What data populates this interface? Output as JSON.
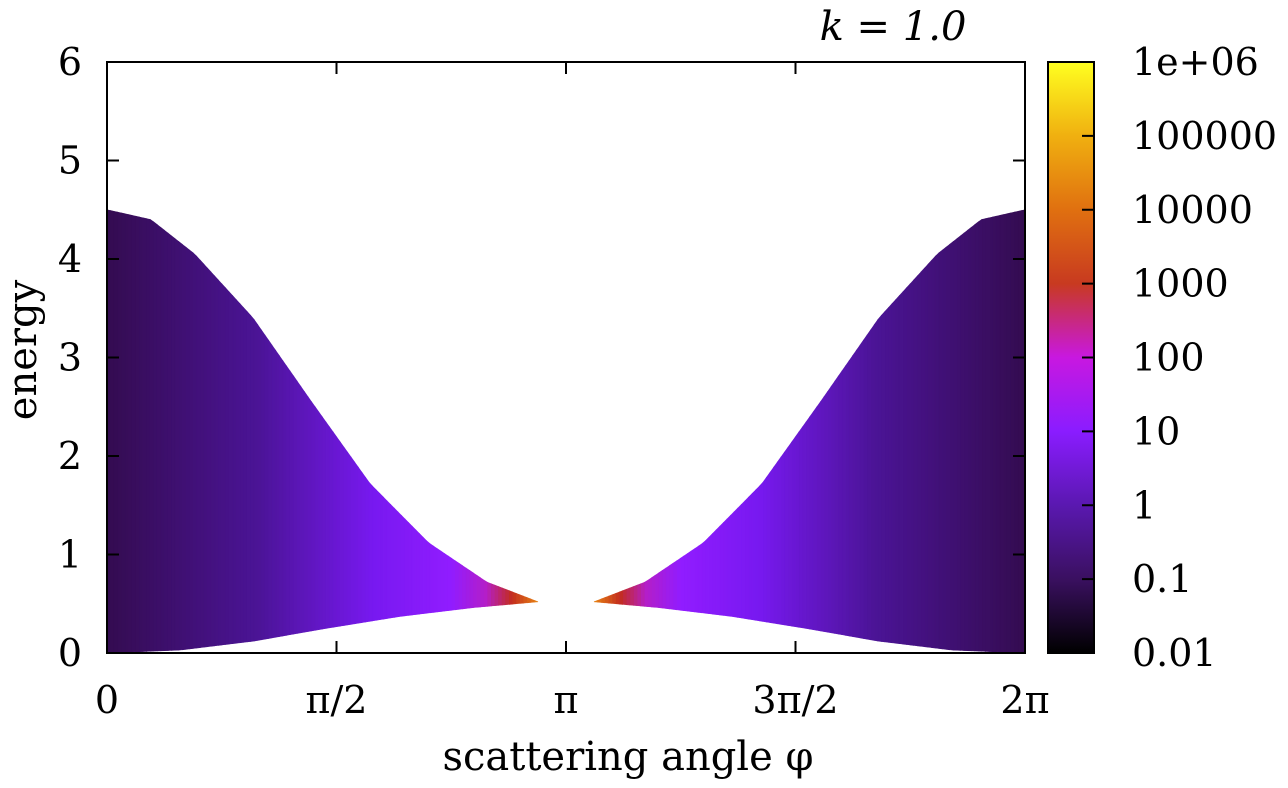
{
  "chart_data": {
    "type": "heatmap",
    "title": "k = 1.0",
    "xlabel": "scattering angle φ",
    "ylabel": "energy",
    "x_range": [
      0,
      6.283185307
    ],
    "y_range": [
      0,
      6
    ],
    "x_ticks": [
      {
        "value": 0,
        "label": "0"
      },
      {
        "value": 1.570796327,
        "label": "π/2"
      },
      {
        "value": 3.141592654,
        "label": "π"
      },
      {
        "value": 4.71238898,
        "label": "3π/2"
      },
      {
        "value": 6.283185307,
        "label": "2π"
      }
    ],
    "y_ticks": [
      {
        "value": 0,
        "label": "0"
      },
      {
        "value": 1,
        "label": "1"
      },
      {
        "value": 2,
        "label": "2"
      },
      {
        "value": 3,
        "label": "3"
      },
      {
        "value": 4,
        "label": "4"
      },
      {
        "value": 5,
        "label": "5"
      },
      {
        "value": 6,
        "label": "6"
      }
    ],
    "region": {
      "upper_boundary": [
        {
          "phi": 0.0,
          "energy": 4.5
        },
        {
          "phi": 0.3,
          "energy": 4.4
        },
        {
          "phi": 0.6,
          "energy": 4.05
        },
        {
          "phi": 1.0,
          "energy": 3.4
        },
        {
          "phi": 1.4,
          "energy": 2.55
        },
        {
          "phi": 1.8,
          "energy": 1.72
        },
        {
          "phi": 2.2,
          "energy": 1.12
        },
        {
          "phi": 2.6,
          "energy": 0.72
        },
        {
          "phi": 2.95,
          "energy": 0.52
        }
      ],
      "lower_boundary": [
        {
          "phi": 0.0,
          "energy": 0.0
        },
        {
          "phi": 0.5,
          "energy": 0.03
        },
        {
          "phi": 1.0,
          "energy": 0.12
        },
        {
          "phi": 1.5,
          "energy": 0.25
        },
        {
          "phi": 2.0,
          "energy": 0.37
        },
        {
          "phi": 2.5,
          "energy": 0.46
        },
        {
          "phi": 2.95,
          "energy": 0.52
        }
      ],
      "symmetric_about": 3.141592654,
      "gap_around_pi": [
        2.95,
        3.33
      ]
    },
    "colorbar": {
      "scale": "log",
      "range": [
        0.01,
        1000000
      ],
      "ticks": [
        {
          "value": 0.01,
          "label": "0.01"
        },
        {
          "value": 0.1,
          "label": "0.1"
        },
        {
          "value": 1,
          "label": "1"
        },
        {
          "value": 10,
          "label": "10"
        },
        {
          "value": 100,
          "label": "100"
        },
        {
          "value": 1000,
          "label": "1000"
        },
        {
          "value": 10000,
          "label": "10000"
        },
        {
          "value": 100000,
          "label": "100000"
        },
        {
          "value": 1000000,
          "label": "1e+06"
        }
      ],
      "colors": [
        "#000000",
        "#3a1060",
        "#5a18b0",
        "#8a1cff",
        "#c818e0",
        "#c83a20",
        "#e07010",
        "#f0b010",
        "#ffff20"
      ]
    },
    "grid": false,
    "legend": "colorbar-right"
  }
}
